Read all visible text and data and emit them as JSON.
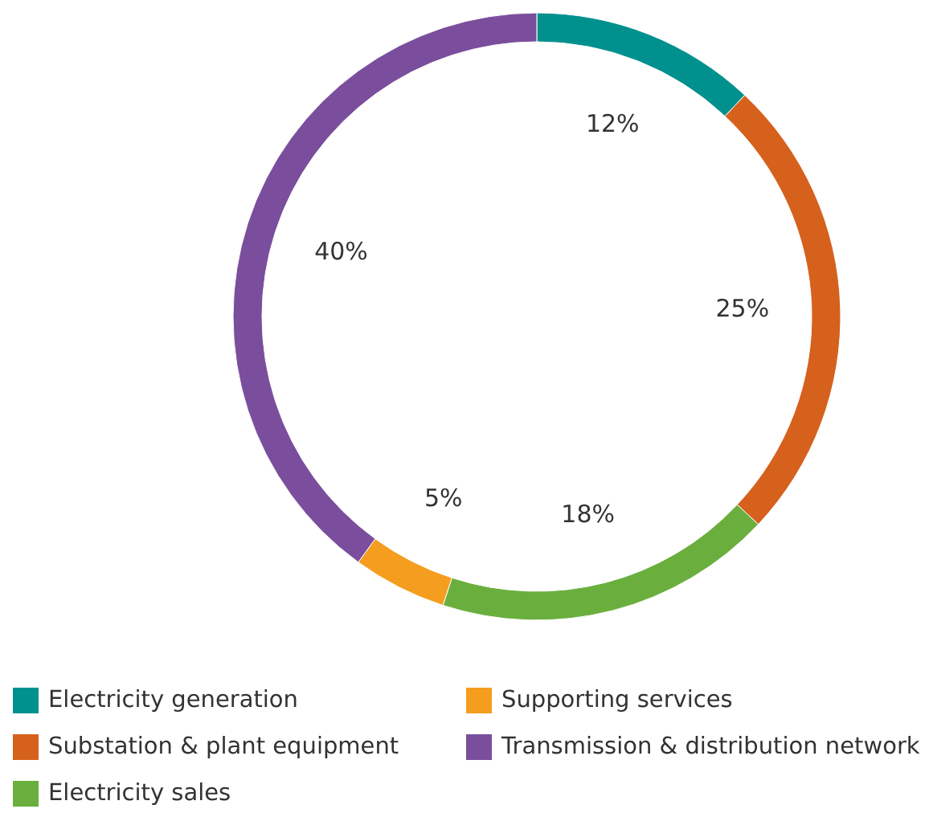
{
  "chart_data": {
    "type": "donut",
    "categories": [
      "Electricity generation",
      "Substation & plant equipment",
      "Electricity sales",
      "Supporting services",
      "Transmission & distribution network"
    ],
    "values": [
      12,
      25,
      18,
      5,
      40
    ],
    "colors": [
      "#00918f",
      "#d5611d",
      "#6aaf3d",
      "#f59d1e",
      "#7a4e9c"
    ],
    "value_labels": [
      "12%",
      "25%",
      "18%",
      "5%",
      "40%"
    ],
    "legend": "bottom"
  }
}
